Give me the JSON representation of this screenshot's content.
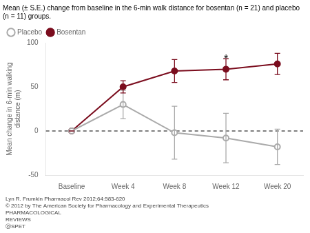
{
  "chart_data": {
    "type": "line",
    "title": "Mean (± S.E.) change from baseline in the 6-min walk distance for bosentan (n = 21) and placebo\n(n = 11) groups.",
    "categories": [
      "Baseline",
      "Week 4",
      "Week 8",
      "Week 12",
      "Week 20"
    ],
    "ylabel": "Mean change in 6-min walking\ndistance (m)",
    "ylim": [
      -50,
      100
    ],
    "yticks": [
      -50,
      0,
      50,
      100
    ],
    "grid": false,
    "legend": "upper left",
    "series": [
      {
        "name": "Placebo",
        "color": "#aaaaaa",
        "marker": "open_circle",
        "values": [
          0,
          30,
          -2,
          -8,
          -18
        ],
        "errors": [
          0,
          16,
          30,
          28,
          20
        ]
      },
      {
        "name": "Bosentan",
        "color": "#7B0D1E",
        "marker": "circle",
        "values": [
          0,
          50,
          68,
          70,
          76
        ],
        "errors": [
          0,
          7,
          13,
          12,
          12
        ]
      }
    ],
    "reference_lines": [
      {
        "y": 0,
        "line_style": "dashed"
      }
    ],
    "annotations": [
      {
        "text": "*",
        "x": "Week 12",
        "y": 82
      }
    ],
    "footnotes": [
      "Lyn R. Frumkin Pharmacol Rev 2012;64:583-620",
      "© 2012 by The American Society for Pharmacology and Experimental Therapeutics",
      "PHARMACOLOGICAL\nREVIEWS",
      "ⓐSPET"
    ]
  }
}
